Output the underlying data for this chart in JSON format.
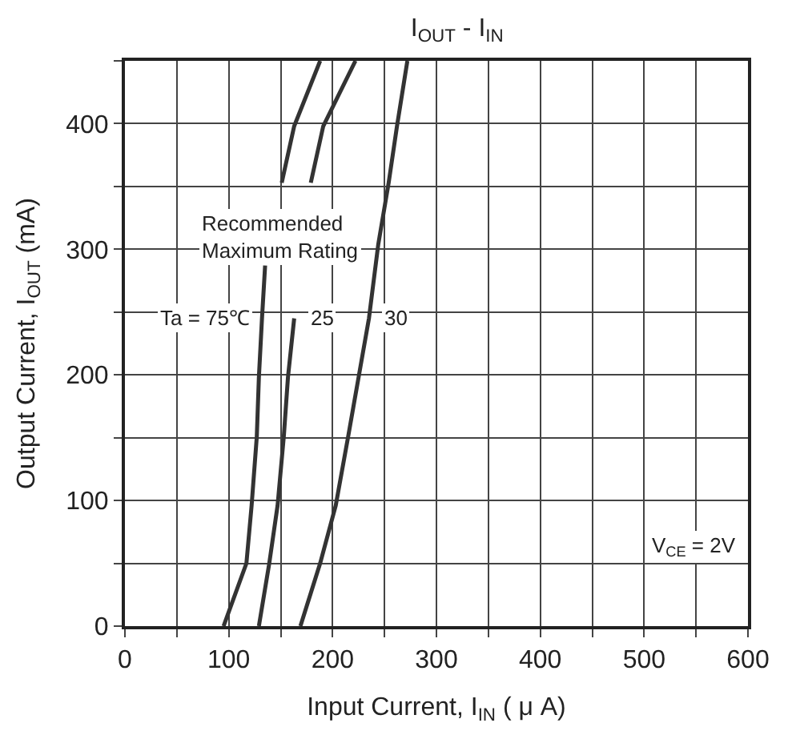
{
  "chart_data": {
    "type": "line",
    "title": "I$_{OUT}$ - I$_{IN}$",
    "xlabel": "Input Current, I$_{IN}$ ( μ A)",
    "ylabel": "Output Current, I$_{OUT}$ (mA)",
    "series": [
      {
        "name": "Ta = 75℃",
        "color": "#333333",
        "x": [
          95,
          117,
          122,
          127,
          129,
          132,
          135,
          141,
          151,
          163,
          188
        ],
        "values": [
          0,
          50,
          96,
          151,
          198,
          245,
          287,
          null,
          353,
          398,
          450
        ]
      },
      {
        "name": "25",
        "color": "#333333",
        "x": [
          129,
          139,
          147,
          153,
          157,
          163,
          170,
          179,
          191,
          222
        ],
        "values": [
          0,
          50,
          96,
          151,
          198,
          245,
          null,
          353,
          398,
          450
        ]
      },
      {
        "name": "30",
        "color": "#333333",
        "x": [
          169,
          188,
          203,
          215,
          225,
          235,
          244,
          254,
          262,
          272
        ],
        "values": [
          0,
          50,
          96,
          151,
          198,
          245,
          304,
          353,
          398,
          450
        ]
      }
    ],
    "annotations": [
      "Recommended\nMaximum Rating",
      "V$_{CE}$ = 2V"
    ],
    "xlim": [
      0,
      600
    ],
    "ylim": [
      0,
      450
    ],
    "xticks": [
      0,
      {
        "value": 50,
        "label": null
      },
      100,
      {
        "value": 150,
        "label": null
      },
      200,
      {
        "value": 250,
        "label": null
      },
      300,
      {
        "value": 350,
        "label": null
      },
      400,
      {
        "value": 450,
        "label": null
      },
      500,
      {
        "value": 550,
        "label": null
      },
      600
    ],
    "yticks": [
      0,
      {
        "value": 50,
        "label": null
      },
      100,
      {
        "value": 150,
        "label": null
      },
      200,
      {
        "value": 250,
        "label": null
      },
      300,
      {
        "value": 350,
        "label": null
      },
      400,
      {
        "value": 450,
        "label": null
      }
    ],
    "grid": true,
    "legend": false,
    "marker": "none",
    "line_style": "solid"
  }
}
